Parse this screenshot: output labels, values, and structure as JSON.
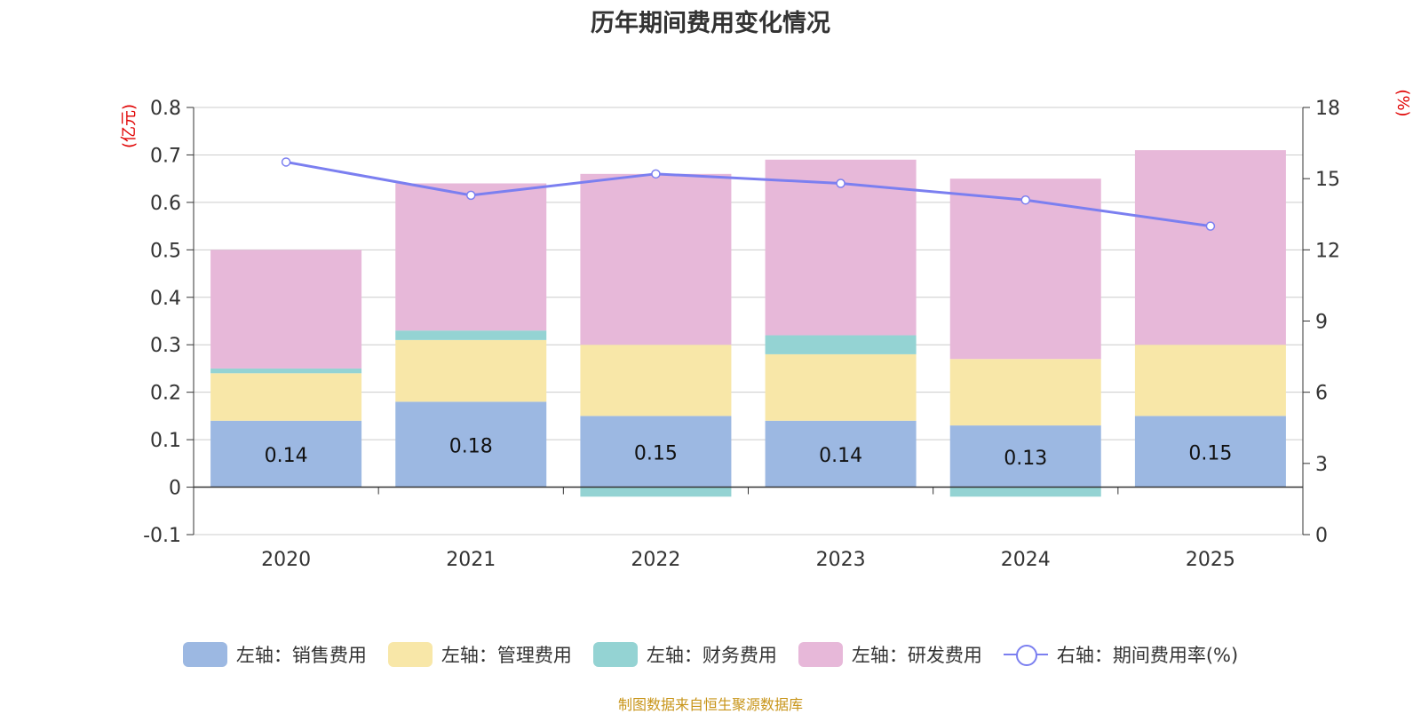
{
  "title": "历年期间费用变化情况",
  "source": "制图数据来自恒生聚源数据库",
  "chart_data": {
    "type": "bar",
    "stacked": true,
    "categories": [
      "2020",
      "2021",
      "2022",
      "2023",
      "2024",
      "2025"
    ],
    "y_left": {
      "unit": "(亿元)",
      "ylim": [
        -0.1,
        0.8
      ],
      "ticks": [
        "-0.1",
        "0",
        "0.1",
        "0.2",
        "0.3",
        "0.4",
        "0.5",
        "0.6",
        "0.7",
        "0.8"
      ]
    },
    "y_right": {
      "unit": "(%)",
      "ylim": [
        0,
        18
      ],
      "ticks": [
        "0",
        "3",
        "6",
        "9",
        "12",
        "15",
        "18"
      ]
    },
    "series": [
      {
        "name": "左轴：销售费用",
        "axis": "left",
        "color": "#9cb8e2",
        "values": [
          0.14,
          0.18,
          0.15,
          0.14,
          0.13,
          0.15
        ],
        "labels": [
          "0.14",
          "0.18",
          "0.15",
          "0.14",
          "0.13",
          "0.15"
        ]
      },
      {
        "name": "左轴：管理费用",
        "axis": "left",
        "color": "#f8e7a8",
        "values": [
          0.1,
          0.13,
          0.15,
          0.14,
          0.14,
          0.15
        ]
      },
      {
        "name": "左轴：财务费用",
        "axis": "left",
        "color": "#94d3d3",
        "values": [
          0.01,
          0.02,
          -0.02,
          0.04,
          -0.02,
          0.0
        ]
      },
      {
        "name": "左轴：研发费用",
        "axis": "left",
        "color": "#e7b8d9",
        "values": [
          0.25,
          0.31,
          0.36,
          0.37,
          0.38,
          0.41
        ]
      },
      {
        "name": "右轴：期间费用率(%)",
        "axis": "right",
        "type": "line",
        "color": "#7b7ff0",
        "values": [
          15.7,
          14.3,
          15.2,
          14.8,
          14.1,
          13.0
        ]
      }
    ]
  }
}
